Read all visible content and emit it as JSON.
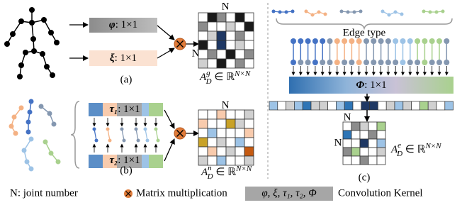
{
  "panel_a": {
    "col_label": "N",
    "row_label": "N",
    "kernel_1": {
      "symbol": "φ",
      "rest": ": 1×1"
    },
    "kernel_2": {
      "symbol": "ξ",
      "rest": ": 1×1"
    },
    "matrix": {
      "base": "A",
      "sub": "D",
      "sup": "g",
      "rel": " ∈ ℝ",
      "dim": "N×N"
    },
    "caption": "(a)"
  },
  "panel_b": {
    "col_label": "N",
    "kernel_1": {
      "symbol": "τ₁",
      "rest": ": 1×1"
    },
    "kernel_2": {
      "symbol": "τ₂",
      "rest": ": 1×1"
    },
    "matrix": {
      "base": "A",
      "sub": "D",
      "sup": "n",
      "rel": " ∈ ℝ",
      "dim": "N×N"
    },
    "caption": "(b)"
  },
  "panel_c": {
    "group_label": "Edge type",
    "kernel": {
      "symbol": "Φ",
      "rest": ": 1×1"
    },
    "col_label": "N",
    "row_label": "N",
    "matrix": {
      "base": "A",
      "sub": "D",
      "sup": "e",
      "rel": " ∈ ℝ",
      "dim": "N×N"
    },
    "caption": "(c)"
  },
  "legend": {
    "joint": "N: joint number",
    "multiply": "Matrix multiplication",
    "kernels": "φ, ξ, τ₁, τ₂, Φ",
    "kernel_label": "Convolution Kernel"
  }
}
